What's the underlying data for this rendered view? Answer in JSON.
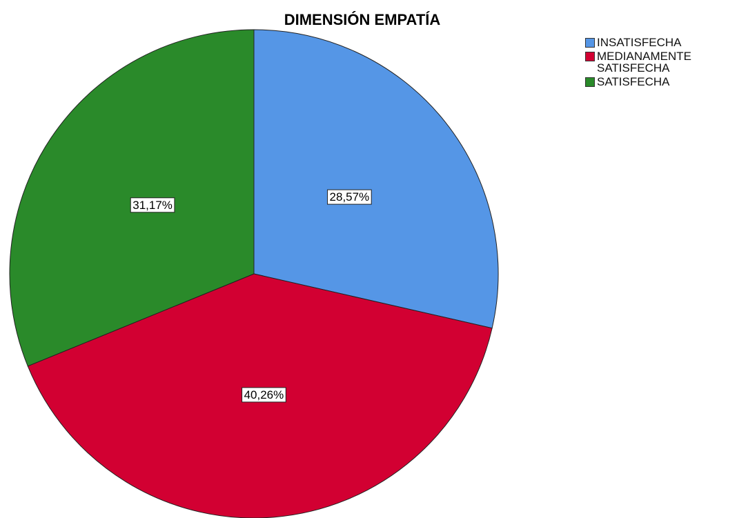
{
  "chart_data": {
    "type": "pie",
    "title": "DIMENSIÓN EMPATÍA",
    "categories": [
      "INSATISFECHA",
      "MEDIANAMENTE SATISFECHA",
      "SATISFECHA"
    ],
    "values": [
      28.57,
      40.26,
      31.17
    ],
    "value_labels": [
      "28,57%",
      "40,26%",
      "31,17%"
    ],
    "colors": [
      "#5596e6",
      "#d20032",
      "#2a8a2a"
    ],
    "legend": "top-right"
  }
}
